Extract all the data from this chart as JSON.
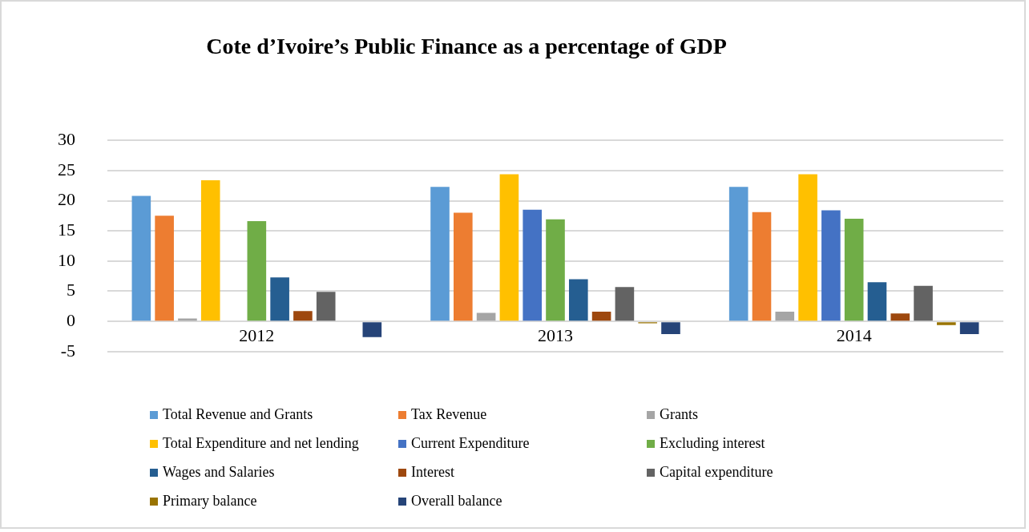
{
  "chart_data": {
    "type": "bar",
    "title": "Cote d’Ivoire’s Public Finance as a percentage of GDP",
    "categories": [
      "2012",
      "2013",
      "2014"
    ],
    "series": [
      {
        "name": "Total Revenue and Grants",
        "color": "#5b9bd5",
        "values": [
          20.8,
          22.3,
          22.3
        ]
      },
      {
        "name": "Tax Revenue",
        "color": "#ed7d31",
        "values": [
          17.5,
          18.0,
          18.1
        ]
      },
      {
        "name": "Grants",
        "color": "#a5a5a5",
        "values": [
          0.5,
          1.4,
          1.6
        ]
      },
      {
        "name": "Total Expenditure and net lending",
        "color": "#ffc000",
        "values": [
          23.4,
          24.4,
          24.4
        ]
      },
      {
        "name": "Current Expenditure",
        "color": "#4472c4",
        "values": [
          null,
          18.5,
          18.4
        ]
      },
      {
        "name": "Excluding interest",
        "color": "#70ad47",
        "values": [
          16.6,
          16.9,
          17.0
        ]
      },
      {
        "name": "Wages and Salaries",
        "color": "#255e91",
        "values": [
          7.3,
          7.0,
          6.5
        ]
      },
      {
        "name": "Interest",
        "color": "#9e480e",
        "values": [
          1.7,
          1.6,
          1.3
        ]
      },
      {
        "name": "Capital expenditure",
        "color": "#636363",
        "values": [
          4.9,
          5.7,
          5.9
        ]
      },
      {
        "name": "Primary balance",
        "color": "#997300",
        "values": [
          null,
          -0.3,
          -0.6
        ]
      },
      {
        "name": "Overall balance",
        "color": "#264478",
        "values": [
          -2.6,
          -2.1,
          -2.1
        ]
      }
    ],
    "ylim": [
      -5,
      30
    ],
    "yticks": [
      -5,
      0,
      5,
      10,
      15,
      20,
      25,
      30
    ],
    "grid": "y",
    "legend": "bottom"
  }
}
